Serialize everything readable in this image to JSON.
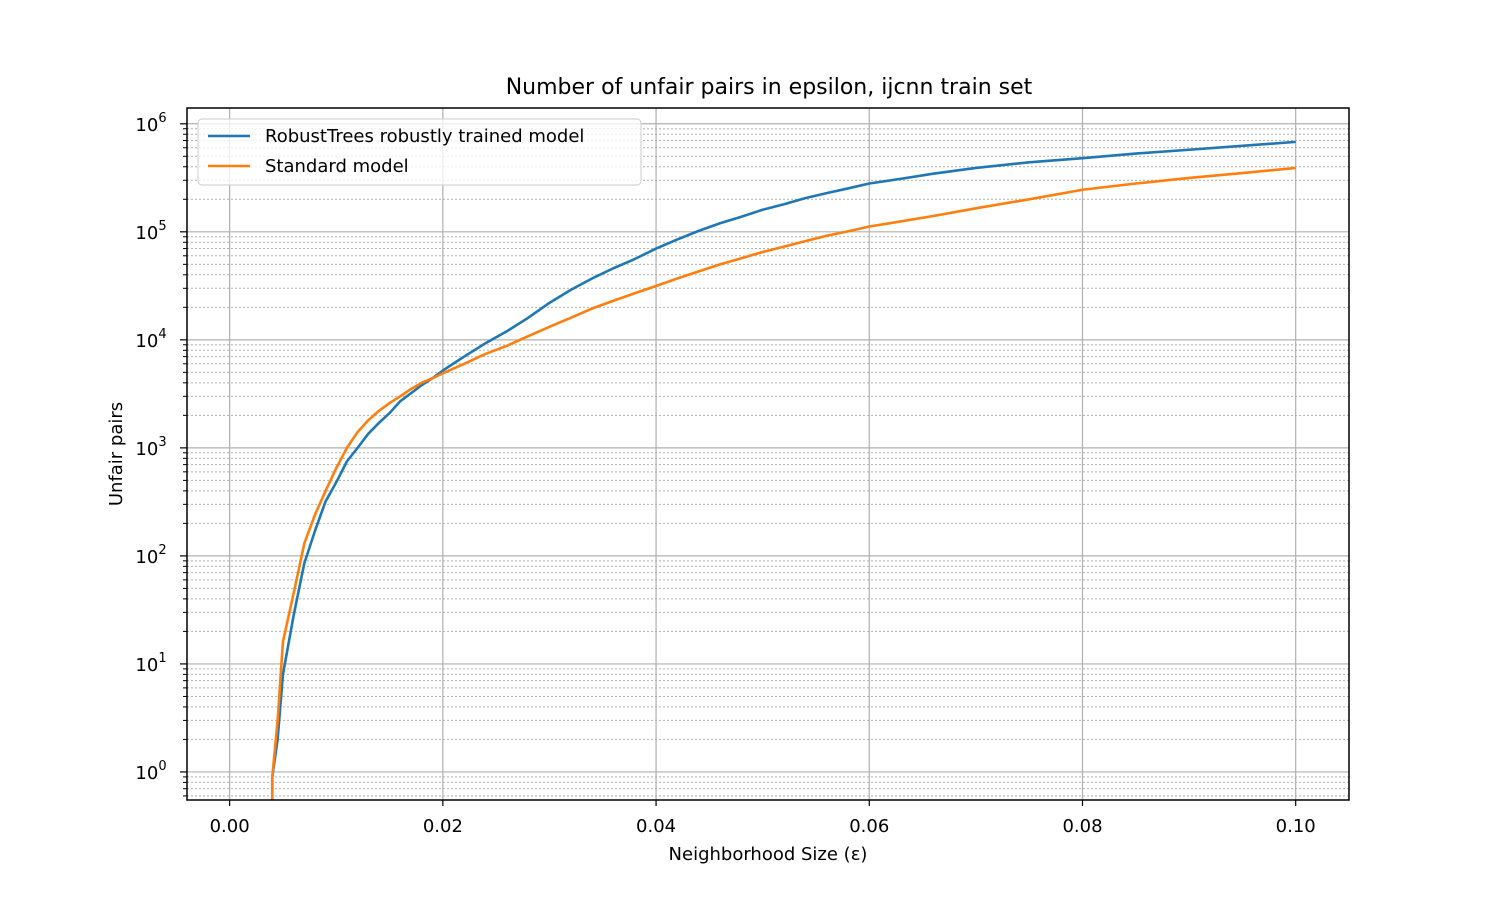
{
  "chart_data": {
    "type": "line",
    "title": "Number of unfair pairs in epsilon, ijcnn train set",
    "xlabel": "Neighborhood Size (ε)",
    "ylabel": "Unfair pairs",
    "xlim": [
      -0.004,
      0.105
    ],
    "ylim": [
      0.55,
      1400000
    ],
    "yscale": "log",
    "grid": true,
    "legend_position": "top-left",
    "x_ticks": [
      {
        "value": 0.0,
        "label": "0.00"
      },
      {
        "value": 0.02,
        "label": "0.02"
      },
      {
        "value": 0.04,
        "label": "0.04"
      },
      {
        "value": 0.06,
        "label": "0.06"
      },
      {
        "value": 0.08,
        "label": "0.08"
      },
      {
        "value": 0.1,
        "label": "0.10"
      }
    ],
    "y_ticks": [
      {
        "value": 1,
        "base": "10",
        "exp": "0"
      },
      {
        "value": 10,
        "base": "10",
        "exp": "1"
      },
      {
        "value": 100,
        "base": "10",
        "exp": "2"
      },
      {
        "value": 1000,
        "base": "10",
        "exp": "3"
      },
      {
        "value": 10000,
        "base": "10",
        "exp": "4"
      },
      {
        "value": 100000,
        "base": "10",
        "exp": "5"
      },
      {
        "value": 1000000,
        "base": "10",
        "exp": "6"
      }
    ],
    "series": [
      {
        "name": "RobustTrees robustly trained model",
        "color": "#1f77b4",
        "points": [
          [
            0.004,
            0.55
          ],
          [
            0.004,
            0.9
          ],
          [
            0.0045,
            2
          ],
          [
            0.005,
            8
          ],
          [
            0.006,
            28
          ],
          [
            0.007,
            85
          ],
          [
            0.008,
            170
          ],
          [
            0.009,
            320
          ],
          [
            0.01,
            480
          ],
          [
            0.011,
            750
          ],
          [
            0.012,
            1000
          ],
          [
            0.013,
            1350
          ],
          [
            0.014,
            1700
          ],
          [
            0.015,
            2100
          ],
          [
            0.016,
            2700
          ],
          [
            0.017,
            3200
          ],
          [
            0.018,
            3800
          ],
          [
            0.019,
            4400
          ],
          [
            0.02,
            5200
          ],
          [
            0.022,
            7000
          ],
          [
            0.024,
            9300
          ],
          [
            0.026,
            12000
          ],
          [
            0.028,
            16000
          ],
          [
            0.03,
            22000
          ],
          [
            0.032,
            29000
          ],
          [
            0.034,
            37000
          ],
          [
            0.036,
            46000
          ],
          [
            0.038,
            56000
          ],
          [
            0.04,
            70000
          ],
          [
            0.042,
            85000
          ],
          [
            0.044,
            102000
          ],
          [
            0.046,
            120000
          ],
          [
            0.048,
            138000
          ],
          [
            0.05,
            160000
          ],
          [
            0.052,
            180000
          ],
          [
            0.054,
            205000
          ],
          [
            0.056,
            228000
          ],
          [
            0.058,
            252000
          ],
          [
            0.06,
            280000
          ],
          [
            0.063,
            310000
          ],
          [
            0.066,
            345000
          ],
          [
            0.07,
            390000
          ],
          [
            0.075,
            440000
          ],
          [
            0.08,
            480000
          ],
          [
            0.085,
            530000
          ],
          [
            0.09,
            575000
          ],
          [
            0.095,
            625000
          ],
          [
            0.1,
            680000
          ]
        ]
      },
      {
        "name": "Standard model",
        "color": "#ff7f0e",
        "points": [
          [
            0.004,
            0.55
          ],
          [
            0.004,
            0.9
          ],
          [
            0.0045,
            3
          ],
          [
            0.005,
            16
          ],
          [
            0.006,
            45
          ],
          [
            0.007,
            130
          ],
          [
            0.008,
            240
          ],
          [
            0.009,
            400
          ],
          [
            0.01,
            650
          ],
          [
            0.011,
            1000
          ],
          [
            0.012,
            1400
          ],
          [
            0.013,
            1800
          ],
          [
            0.014,
            2200
          ],
          [
            0.015,
            2600
          ],
          [
            0.016,
            3000
          ],
          [
            0.017,
            3500
          ],
          [
            0.018,
            4000
          ],
          [
            0.019,
            4400
          ],
          [
            0.02,
            4900
          ],
          [
            0.022,
            6000
          ],
          [
            0.024,
            7400
          ],
          [
            0.026,
            8800
          ],
          [
            0.028,
            10800
          ],
          [
            0.03,
            13200
          ],
          [
            0.032,
            16000
          ],
          [
            0.034,
            19500
          ],
          [
            0.036,
            23000
          ],
          [
            0.038,
            27000
          ],
          [
            0.04,
            31500
          ],
          [
            0.042,
            37000
          ],
          [
            0.044,
            43000
          ],
          [
            0.046,
            50000
          ],
          [
            0.048,
            57000
          ],
          [
            0.05,
            65000
          ],
          [
            0.052,
            73000
          ],
          [
            0.054,
            82000
          ],
          [
            0.056,
            92000
          ],
          [
            0.058,
            101000
          ],
          [
            0.06,
            112000
          ],
          [
            0.063,
            125000
          ],
          [
            0.066,
            140000
          ],
          [
            0.07,
            165000
          ],
          [
            0.075,
            200000
          ],
          [
            0.08,
            245000
          ],
          [
            0.085,
            280000
          ],
          [
            0.09,
            315000
          ],
          [
            0.095,
            350000
          ],
          [
            0.1,
            390000
          ]
        ]
      }
    ]
  }
}
